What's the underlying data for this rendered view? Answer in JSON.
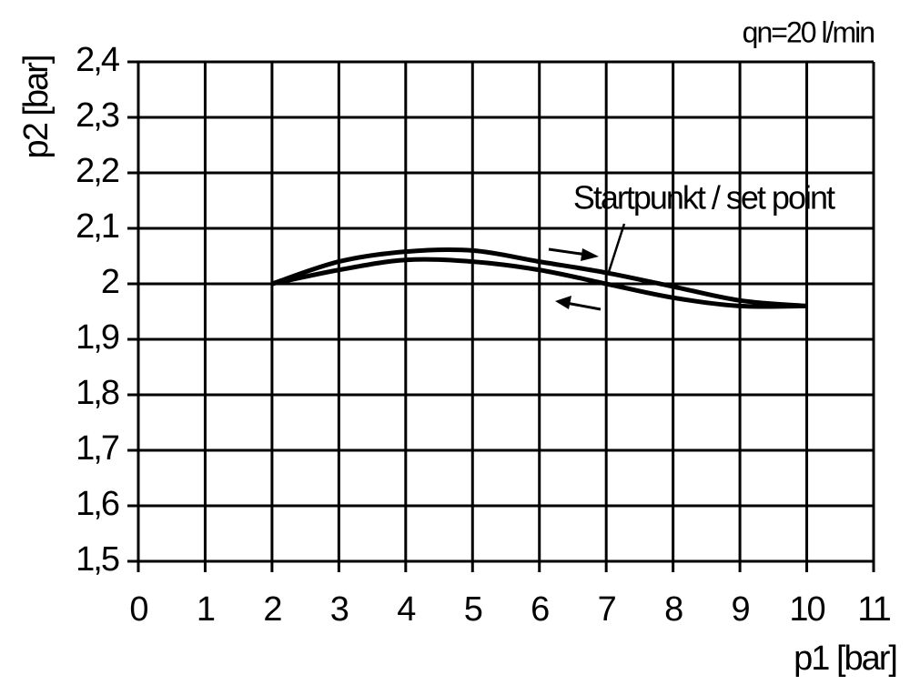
{
  "chart_data": {
    "type": "line",
    "title": "qn=20 l/min",
    "x_label": "p1 [bar]",
    "y_label": "p2 [bar]",
    "annotation": "Startpunkt / set point",
    "xlim": [
      0,
      11
    ],
    "xticks": [
      0,
      1,
      2,
      3,
      4,
      5,
      6,
      7,
      8,
      9,
      10,
      11
    ],
    "ylim": [
      1.5,
      2.4
    ],
    "yticks": [
      {
        "value": 1.5,
        "label": "1,5"
      },
      {
        "value": 1.6,
        "label": "1,6"
      },
      {
        "value": 1.7,
        "label": "1,7"
      },
      {
        "value": 1.8,
        "label": "1,8"
      },
      {
        "value": 1.9,
        "label": "1,9"
      },
      2,
      {
        "value": 2.1,
        "label": "2,1"
      },
      {
        "value": 2.2,
        "label": "2,2"
      },
      {
        "value": 2.3,
        "label": "2,3"
      },
      {
        "value": 2.4,
        "label": "2,4"
      }
    ],
    "grid": true,
    "x": [
      2,
      3,
      4,
      5,
      6,
      7,
      8,
      9,
      10
    ],
    "series": [
      {
        "color": "#000000",
        "values": [
          2.0,
          2.04,
          2.058,
          2.06,
          2.04,
          2.02,
          1.995,
          1.97,
          1.96
        ]
      },
      {
        "color": "#000000",
        "values": [
          2.0,
          2.025,
          2.043,
          2.04,
          2.025,
          2.0,
          1.975,
          1.96,
          1.96
        ]
      }
    ]
  }
}
